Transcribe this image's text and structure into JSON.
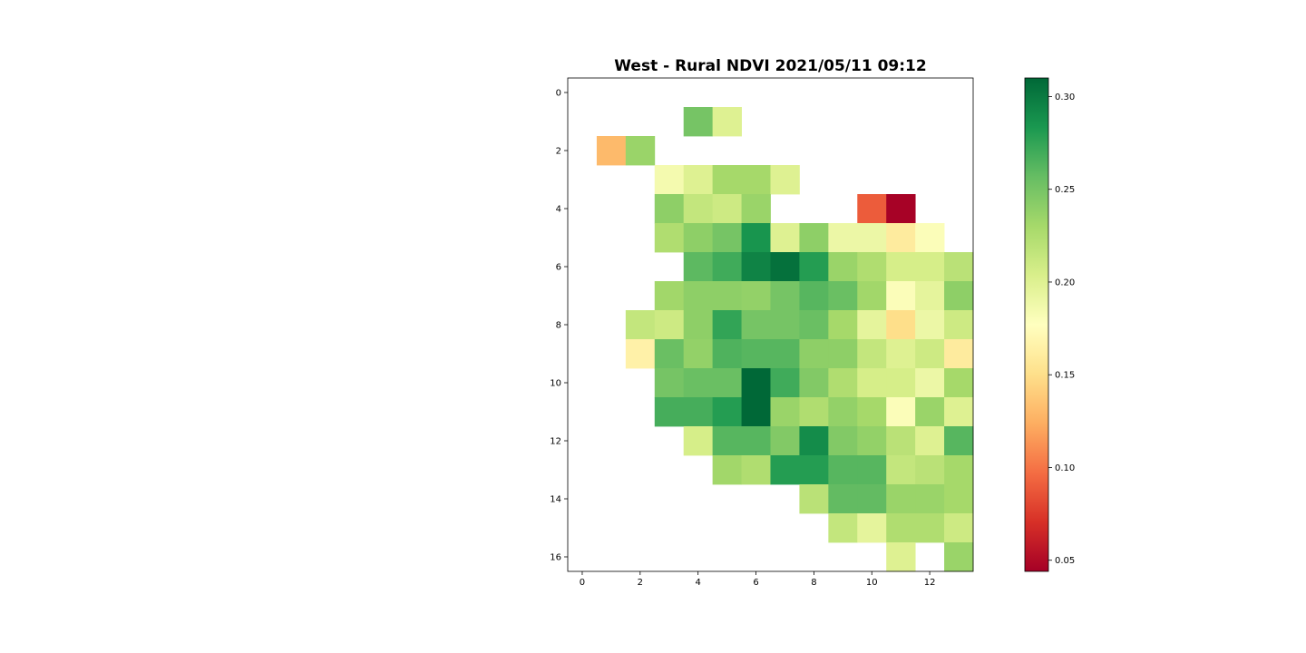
{
  "title": "West - Rural NDVI 2021/05/11 09:12",
  "chart_data": {
    "type": "heatmap",
    "title": "West - Rural NDVI 2021/05/11 09:12",
    "colormap": "RdYlGn",
    "vmin": 0.044,
    "vmax": 0.31,
    "n_rows": 17,
    "n_cols": 14,
    "xlim": [
      -0.5,
      13.5
    ],
    "ylim": [
      16.5,
      -0.5
    ],
    "x_ticks": [
      "0",
      "2",
      "4",
      "6",
      "8",
      "10",
      "12"
    ],
    "y_ticks": [
      "0",
      "2",
      "4",
      "6",
      "8",
      "10",
      "12",
      "14",
      "16"
    ],
    "colorbar_ticks": [
      "0.05",
      "0.10",
      "0.15",
      "0.20",
      "0.25",
      "0.30"
    ],
    "cells": [
      [
        1,
        4,
        0.25
      ],
      [
        1,
        5,
        0.2
      ],
      [
        2,
        1,
        0.13
      ],
      [
        2,
        2,
        0.235
      ],
      [
        3,
        3,
        0.185
      ],
      [
        3,
        4,
        0.2
      ],
      [
        3,
        5,
        0.23
      ],
      [
        3,
        6,
        0.23
      ],
      [
        3,
        7,
        0.2
      ],
      [
        4,
        3,
        0.24
      ],
      [
        4,
        4,
        0.215
      ],
      [
        4,
        5,
        0.21
      ],
      [
        4,
        6,
        0.235
      ],
      [
        4,
        10,
        0.09
      ],
      [
        4,
        11,
        0.045
      ],
      [
        5,
        3,
        0.225
      ],
      [
        5,
        4,
        0.24
      ],
      [
        5,
        5,
        0.25
      ],
      [
        5,
        6,
        0.285
      ],
      [
        5,
        7,
        0.2
      ],
      [
        5,
        8,
        0.24
      ],
      [
        5,
        9,
        0.19
      ],
      [
        5,
        10,
        0.19
      ],
      [
        5,
        11,
        0.16
      ],
      [
        5,
        12,
        0.18
      ],
      [
        6,
        4,
        0.26
      ],
      [
        6,
        5,
        0.27
      ],
      [
        6,
        6,
        0.295
      ],
      [
        6,
        7,
        0.305
      ],
      [
        6,
        8,
        0.28
      ],
      [
        6,
        9,
        0.235
      ],
      [
        6,
        10,
        0.225
      ],
      [
        6,
        11,
        0.205
      ],
      [
        6,
        12,
        0.205
      ],
      [
        6,
        13,
        0.22
      ],
      [
        7,
        3,
        0.232
      ],
      [
        7,
        4,
        0.24
      ],
      [
        7,
        5,
        0.24
      ],
      [
        7,
        6,
        0.238
      ],
      [
        7,
        7,
        0.25
      ],
      [
        7,
        8,
        0.262
      ],
      [
        7,
        9,
        0.255
      ],
      [
        7,
        10,
        0.232
      ],
      [
        7,
        11,
        0.18
      ],
      [
        7,
        12,
        0.195
      ],
      [
        7,
        13,
        0.24
      ],
      [
        8,
        2,
        0.215
      ],
      [
        8,
        3,
        0.21
      ],
      [
        8,
        4,
        0.24
      ],
      [
        8,
        5,
        0.275
      ],
      [
        8,
        6,
        0.25
      ],
      [
        8,
        7,
        0.25
      ],
      [
        8,
        8,
        0.255
      ],
      [
        8,
        9,
        0.23
      ],
      [
        8,
        10,
        0.195
      ],
      [
        8,
        11,
        0.15
      ],
      [
        8,
        12,
        0.19
      ],
      [
        8,
        13,
        0.21
      ],
      [
        9,
        2,
        0.165
      ],
      [
        9,
        3,
        0.255
      ],
      [
        9,
        4,
        0.238
      ],
      [
        9,
        5,
        0.265
      ],
      [
        9,
        6,
        0.262
      ],
      [
        9,
        7,
        0.262
      ],
      [
        9,
        8,
        0.24
      ],
      [
        9,
        9,
        0.24
      ],
      [
        9,
        10,
        0.215
      ],
      [
        9,
        11,
        0.2
      ],
      [
        9,
        12,
        0.21
      ],
      [
        9,
        13,
        0.16
      ],
      [
        10,
        3,
        0.25
      ],
      [
        10,
        4,
        0.255
      ],
      [
        10,
        5,
        0.255
      ],
      [
        10,
        6,
        0.31
      ],
      [
        10,
        7,
        0.27
      ],
      [
        10,
        8,
        0.245
      ],
      [
        10,
        9,
        0.225
      ],
      [
        10,
        10,
        0.205
      ],
      [
        10,
        11,
        0.205
      ],
      [
        10,
        12,
        0.19
      ],
      [
        10,
        13,
        0.23
      ],
      [
        11,
        3,
        0.268
      ],
      [
        11,
        4,
        0.268
      ],
      [
        11,
        5,
        0.28
      ],
      [
        11,
        6,
        0.31
      ],
      [
        11,
        7,
        0.235
      ],
      [
        11,
        8,
        0.225
      ],
      [
        11,
        9,
        0.238
      ],
      [
        11,
        10,
        0.23
      ],
      [
        11,
        11,
        0.18
      ],
      [
        11,
        12,
        0.235
      ],
      [
        11,
        13,
        0.2
      ],
      [
        12,
        4,
        0.205
      ],
      [
        12,
        5,
        0.262
      ],
      [
        12,
        6,
        0.262
      ],
      [
        12,
        7,
        0.245
      ],
      [
        12,
        8,
        0.29
      ],
      [
        12,
        9,
        0.245
      ],
      [
        12,
        10,
        0.238
      ],
      [
        12,
        11,
        0.22
      ],
      [
        12,
        12,
        0.2
      ],
      [
        12,
        13,
        0.262
      ],
      [
        13,
        5,
        0.232
      ],
      [
        13,
        6,
        0.225
      ],
      [
        13,
        7,
        0.28
      ],
      [
        13,
        8,
        0.28
      ],
      [
        13,
        9,
        0.262
      ],
      [
        13,
        10,
        0.262
      ],
      [
        13,
        11,
        0.215
      ],
      [
        13,
        12,
        0.22
      ],
      [
        13,
        13,
        0.23
      ],
      [
        14,
        8,
        0.22
      ],
      [
        14,
        9,
        0.258
      ],
      [
        14,
        10,
        0.258
      ],
      [
        14,
        11,
        0.235
      ],
      [
        14,
        12,
        0.235
      ],
      [
        14,
        13,
        0.23
      ],
      [
        15,
        9,
        0.215
      ],
      [
        15,
        10,
        0.195
      ],
      [
        15,
        11,
        0.225
      ],
      [
        15,
        12,
        0.225
      ],
      [
        15,
        13,
        0.21
      ],
      [
        16,
        11,
        0.2
      ],
      [
        16,
        13,
        0.235
      ]
    ]
  }
}
